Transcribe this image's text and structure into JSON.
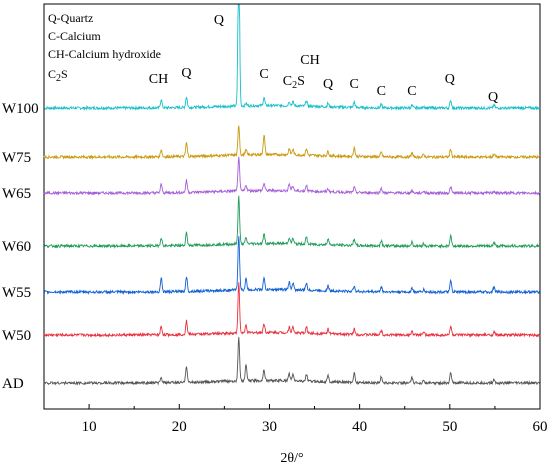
{
  "chart_data": {
    "type": "line",
    "title": "",
    "xlabel": "2θ/°",
    "ylabel": "",
    "xlim": [
      5,
      60
    ],
    "x_ticks": [
      10,
      20,
      30,
      40,
      50,
      60
    ],
    "grid": false,
    "legend": {
      "placement": "top-left",
      "entries": [
        "Q-Quartz",
        "C-Calcium",
        "CH-Calcium hydroxide",
        "C2S"
      ]
    },
    "series": [
      {
        "name": "W100",
        "color": "#17bfc9",
        "peaks": [
          [
            18.0,
            17
          ],
          [
            20.8,
            21
          ],
          [
            26.6,
            320
          ],
          [
            27.4,
            5
          ],
          [
            29.4,
            16
          ],
          [
            32.2,
            9
          ],
          [
            32.6,
            8
          ],
          [
            34.1,
            11
          ],
          [
            36.5,
            7
          ],
          [
            39.4,
            11
          ],
          [
            42.4,
            6
          ],
          [
            45.8,
            5
          ],
          [
            47.1,
            4
          ],
          [
            50.1,
            15
          ],
          [
            54.9,
            6
          ]
        ]
      },
      {
        "name": "W75",
        "color": "#c99a0e",
        "peaks": [
          [
            18.0,
            15
          ],
          [
            20.8,
            27
          ],
          [
            26.6,
            60
          ],
          [
            27.4,
            10
          ],
          [
            29.4,
            40
          ],
          [
            32.2,
            12
          ],
          [
            32.6,
            11
          ],
          [
            34.1,
            13
          ],
          [
            36.5,
            9
          ],
          [
            39.4,
            18
          ],
          [
            42.4,
            9
          ],
          [
            45.8,
            8
          ],
          [
            47.1,
            5
          ],
          [
            50.1,
            16
          ],
          [
            54.9,
            6
          ]
        ]
      },
      {
        "name": "W65",
        "color": "#a45fd6",
        "peaks": [
          [
            18.0,
            17
          ],
          [
            20.8,
            24
          ],
          [
            26.6,
            70
          ],
          [
            27.4,
            12
          ],
          [
            29.4,
            15
          ],
          [
            32.2,
            14
          ],
          [
            32.6,
            10
          ],
          [
            34.1,
            12
          ],
          [
            36.5,
            6
          ],
          [
            39.4,
            10
          ],
          [
            42.4,
            10
          ],
          [
            45.8,
            5
          ],
          [
            47.1,
            4
          ],
          [
            50.1,
            12
          ],
          [
            54.9,
            4
          ]
        ]
      },
      {
        "name": "W60",
        "color": "#1f9b5a",
        "peaks": [
          [
            18.0,
            17
          ],
          [
            20.8,
            26
          ],
          [
            26.6,
            95
          ],
          [
            27.4,
            12
          ],
          [
            29.4,
            19
          ],
          [
            32.2,
            13
          ],
          [
            32.6,
            11
          ],
          [
            34.1,
            14
          ],
          [
            36.5,
            13
          ],
          [
            39.4,
            14
          ],
          [
            42.4,
            11
          ],
          [
            45.8,
            8
          ],
          [
            47.1,
            5
          ],
          [
            50.1,
            21
          ],
          [
            54.9,
            7
          ]
        ]
      },
      {
        "name": "W55",
        "color": "#1060d3",
        "peaks": [
          [
            18.0,
            28
          ],
          [
            20.8,
            30
          ],
          [
            26.6,
            110
          ],
          [
            27.4,
            22
          ],
          [
            29.4,
            22
          ],
          [
            32.2,
            15
          ],
          [
            32.6,
            14
          ],
          [
            34.1,
            14
          ],
          [
            36.5,
            10
          ],
          [
            39.4,
            12
          ],
          [
            42.4,
            10
          ],
          [
            45.8,
            8
          ],
          [
            47.1,
            5
          ],
          [
            50.1,
            22
          ],
          [
            54.9,
            10
          ]
        ]
      },
      {
        "name": "W50",
        "color": "#e8303e",
        "peaks": [
          [
            18.0,
            17
          ],
          [
            20.8,
            27
          ],
          [
            26.6,
            100
          ],
          [
            27.4,
            15
          ],
          [
            29.4,
            18
          ],
          [
            32.2,
            12
          ],
          [
            32.6,
            11
          ],
          [
            34.1,
            12
          ],
          [
            36.5,
            10
          ],
          [
            39.4,
            11
          ],
          [
            42.4,
            9
          ],
          [
            45.8,
            8
          ],
          [
            47.1,
            5
          ],
          [
            50.1,
            18
          ],
          [
            54.9,
            6
          ]
        ]
      },
      {
        "name": "AD",
        "color": "#555555",
        "peaks": [
          [
            18.0,
            10
          ],
          [
            20.8,
            34
          ],
          [
            26.6,
            90
          ],
          [
            27.4,
            32
          ],
          [
            29.4,
            22
          ],
          [
            32.2,
            14
          ],
          [
            32.6,
            12
          ],
          [
            34.1,
            13
          ],
          [
            36.5,
            12
          ],
          [
            39.4,
            19
          ],
          [
            42.4,
            12
          ],
          [
            45.8,
            10
          ],
          [
            47.1,
            6
          ],
          [
            50.1,
            21
          ],
          [
            54.9,
            7
          ]
        ]
      }
    ],
    "annotations": [
      {
        "text": "CH",
        "x": 17.7
      },
      {
        "text": "Q",
        "x": 20.8
      },
      {
        "text": "Q",
        "x": 24.4
      },
      {
        "text": "C",
        "x": 29.4
      },
      {
        "text": "C2S",
        "x": 32.7
      },
      {
        "text": "CH",
        "x": 34.5
      },
      {
        "text": "Q",
        "x": 36.5
      },
      {
        "text": "C",
        "x": 39.4
      },
      {
        "text": "C",
        "x": 42.4
      },
      {
        "text": "C",
        "x": 45.8
      },
      {
        "text": "Q",
        "x": 50.0
      },
      {
        "text": "Q",
        "x": 54.8
      }
    ]
  }
}
